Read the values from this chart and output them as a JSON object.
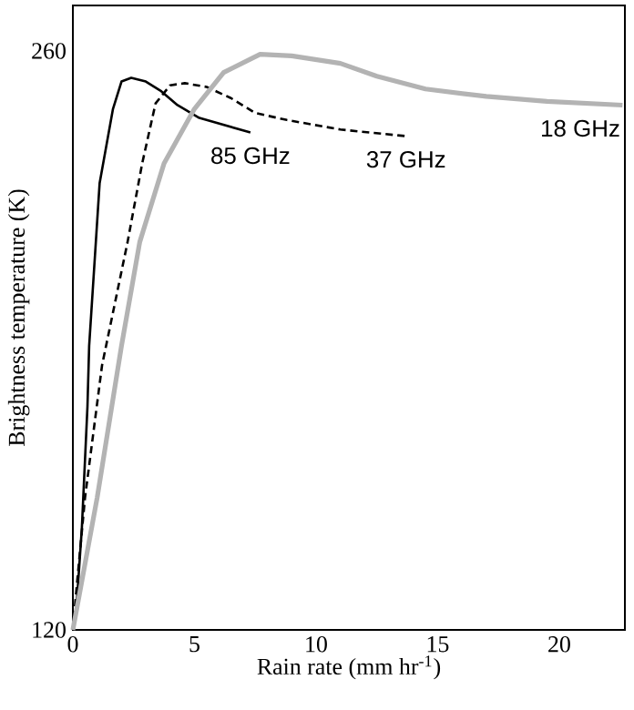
{
  "chart_data": {
    "type": "line",
    "xlabel": "Rain rate (mm hr$^{-1}$)",
    "ylabel": "Brightness temperature (K)",
    "xlim": [
      0,
      22.7
    ],
    "ylim": [
      120,
      271
    ],
    "xticks": [
      0,
      5,
      10,
      15,
      20
    ],
    "yticks": [
      120,
      260
    ],
    "grid": false,
    "legend": false,
    "marker": "none",
    "series": [
      {
        "name": "85 GHz",
        "color": "#000000",
        "line_style": "solid",
        "x": [
          0,
          0.15,
          0.37,
          0.6,
          0.67,
          1.1,
          1.65,
          2.0,
          2.4,
          3.0,
          3.6,
          4.3,
          5.2,
          7.3
        ],
        "values": [
          120,
          125.7,
          144.7,
          174,
          188.7,
          228,
          246,
          252.6,
          253.5,
          252.6,
          250.4,
          246.9,
          243.8,
          240.3
        ]
      },
      {
        "name": "37 GHz",
        "color": "#000000",
        "line_style": "dashed",
        "x": [
          0,
          0.15,
          0.5,
          1.2,
          2.25,
          2.85,
          3.4,
          4.0,
          4.6,
          5.5,
          6.5,
          7.5,
          8.8,
          11.0,
          13.7
        ],
        "values": [
          120,
          130,
          152,
          184,
          213.8,
          232.8,
          247.3,
          251.7,
          252.2,
          251.3,
          248.6,
          245,
          243.3,
          241,
          239.4
        ]
      },
      {
        "name": "18 GHz",
        "color": "#b3b3b3",
        "line_style": "solid",
        "x": [
          0,
          1.0,
          2.0,
          2.75,
          3.75,
          5.0,
          6.2,
          7.7,
          9.0,
          11.0,
          12.5,
          14.5,
          17.0,
          19.5,
          22.6
        ],
        "values": [
          120,
          152,
          188.7,
          213.8,
          232.8,
          246,
          254.8,
          259.2,
          258.8,
          257,
          253.9,
          250.8,
          249,
          247.8,
          246.9
        ]
      }
    ]
  }
}
